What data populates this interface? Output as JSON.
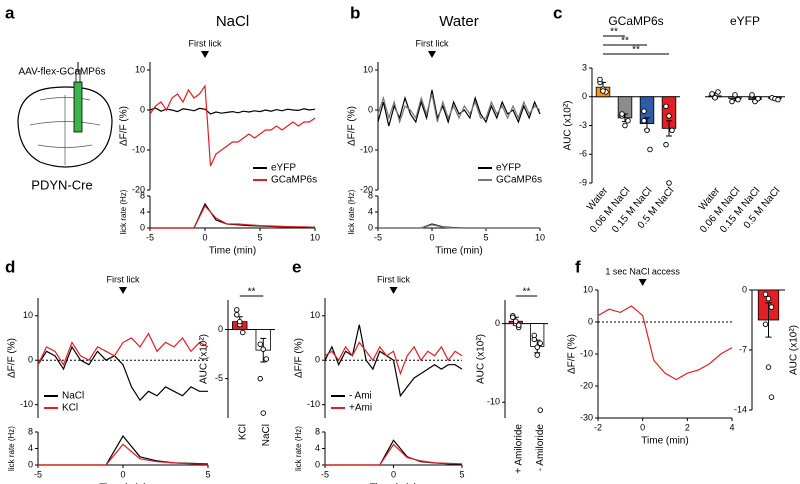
{
  "chart_data": [
    {
      "type": "line",
      "panel": "a",
      "title": "NaCl",
      "construct": "AAV-flex-GCaMP6s",
      "mouse_line": "PDYN-Cre",
      "ylabel": "ΔF/F (%)",
      "annotation": {
        "text": "First lick",
        "x": 0
      },
      "xlim": [
        -5,
        10
      ],
      "ylim": [
        -20,
        12
      ],
      "yticks": [
        -20,
        -10,
        0,
        10
      ],
      "legend": "lower right",
      "x": [
        -5,
        -4.5,
        -4,
        -3.5,
        -3,
        -2.5,
        -2,
        -1.5,
        -1,
        -0.5,
        0,
        0.5,
        1,
        1.5,
        2,
        2.5,
        3,
        3.5,
        4,
        4.5,
        5,
        5.5,
        6,
        6.5,
        7,
        7.5,
        8,
        8.5,
        9,
        9.5,
        10
      ],
      "series": [
        {
          "name": "eYFP",
          "color": "#000000",
          "values": [
            0,
            0.5,
            -0.3,
            0.2,
            0,
            -0.4,
            0.3,
            0.1,
            -0.2,
            0.4,
            0.2,
            -1,
            -0.5,
            -0.8,
            -0.6,
            -0.4,
            -0.7,
            -0.3,
            -0.5,
            -0.2,
            -0.4,
            0,
            -0.3,
            0.1,
            -0.2,
            0.2,
            0,
            -0.1,
            0.3,
            0,
            0.2
          ]
        },
        {
          "name": "GCaMP6s",
          "color": "#e31e24",
          "values": [
            -1,
            1,
            2,
            0,
            3,
            4,
            2,
            5,
            3,
            4,
            6,
            -14,
            -11,
            -10,
            -9,
            -8,
            -8,
            -7,
            -6,
            -7,
            -6,
            -5,
            -5,
            -4,
            -5,
            -4,
            -3,
            -4,
            -3,
            -3,
            -2
          ]
        }
      ]
    },
    {
      "type": "line",
      "ylabel": "lick rate (Hz)",
      "xlabel": "Time (min)",
      "xlim": [
        -5,
        10
      ],
      "xticks": [
        -5,
        0,
        5,
        10
      ],
      "ylim": [
        0,
        8
      ],
      "yticks": [
        0,
        4,
        8
      ],
      "x": [
        -5,
        -4,
        -3,
        -2,
        -1,
        0,
        1,
        2,
        3,
        4,
        5,
        6,
        7,
        8,
        9,
        10
      ],
      "series": [
        {
          "color": "#000000",
          "values": [
            0,
            0,
            0,
            0,
            0,
            6,
            2,
            1,
            0.8,
            0.6,
            0.5,
            0.4,
            0.3,
            0.3,
            0.2,
            0.2
          ]
        },
        {
          "color": "#e31e24",
          "values": [
            0,
            0,
            0,
            0,
            0,
            5.5,
            2.5,
            1,
            1,
            0.8,
            0.6,
            0.5,
            0.4,
            0.3,
            0.3,
            0.2
          ]
        }
      ]
    },
    {
      "type": "line",
      "panel": "b",
      "title": "Water",
      "ylabel": "ΔF/F (%)",
      "annotation": {
        "text": "First lick",
        "x": 0
      },
      "xlim": [
        -5,
        10
      ],
      "ylim": [
        -20,
        12
      ],
      "yticks": [
        -20,
        -10,
        0,
        10
      ],
      "legend": "lower right",
      "x": [
        -5,
        -4.5,
        -4,
        -3.5,
        -3,
        -2.5,
        -2,
        -1.5,
        -1,
        -0.5,
        0,
        0.5,
        1,
        1.5,
        2,
        2.5,
        3,
        3.5,
        4,
        4.5,
        5,
        5.5,
        6,
        6.5,
        7,
        7.5,
        8,
        8.5,
        9,
        9.5,
        10
      ],
      "series": [
        {
          "name": "eYFP",
          "color": "#000000",
          "values": [
            -3,
            2,
            -4,
            1,
            -2,
            3,
            -1,
            -3,
            2,
            -2,
            5,
            -2,
            1,
            -3,
            2,
            -1,
            0,
            -2,
            3,
            -1,
            -3,
            1,
            -2,
            2,
            -1,
            0,
            -3,
            1,
            -2,
            2,
            -1
          ]
        },
        {
          "name": "GCaMP6s",
          "color": "#777777",
          "values": [
            -1,
            3,
            -2,
            2,
            -3,
            1,
            0,
            -2,
            3,
            -1,
            4,
            -3,
            2,
            -2,
            1,
            -2,
            1,
            -1,
            2,
            -2,
            -2,
            2,
            -1,
            1,
            -2,
            1,
            -2,
            2,
            -1,
            1,
            0
          ]
        }
      ]
    },
    {
      "type": "line",
      "ylabel": "lick rate (Hz)",
      "xlabel": "Time (min)",
      "xlim": [
        -5,
        10
      ],
      "xticks": [
        -5,
        0,
        5,
        10
      ],
      "ylim": [
        0,
        8
      ],
      "yticks": [
        0,
        4,
        8
      ],
      "x": [
        -5,
        -4,
        -3,
        -2,
        -1,
        0,
        1,
        2,
        3,
        4,
        5,
        6,
        7,
        8,
        9,
        10
      ],
      "series": [
        {
          "color": "#000000",
          "values": [
            0,
            0,
            0,
            0,
            0,
            1,
            0.3,
            0.1,
            0,
            0,
            0,
            0,
            0,
            0,
            0,
            0
          ]
        },
        {
          "color": "#777777",
          "values": [
            0,
            0,
            0,
            0,
            0,
            0.8,
            0.2,
            0,
            0,
            0,
            0,
            0,
            0,
            0,
            0,
            0
          ]
        }
      ]
    },
    {
      "type": "bar",
      "panel": "c",
      "title": "GCaMP6s",
      "ylabel": "AUC (x10²)",
      "ylim": [
        -9,
        3
      ],
      "yticks": [
        3,
        0,
        -3,
        -6,
        -9
      ],
      "categories": [
        "Water",
        "0.06 M NaCl",
        "0.15 M NaCl",
        "0.5 M NaCl"
      ],
      "values": [
        1,
        -2.2,
        -2.8,
        -3.3
      ],
      "errors": [
        0.5,
        0.4,
        0.6,
        0.8
      ],
      "colors": [
        "#f7941d",
        "#8c8c8c",
        "#2e5ca8",
        "#e31e24"
      ],
      "points": [
        [
          1.5,
          0.8,
          0.5,
          1.8,
          0.6
        ],
        [
          -2,
          -3,
          -2.5,
          -1.8
        ],
        [
          -1.5,
          -3.5,
          -5.5,
          -2.5
        ],
        [
          -1,
          -2,
          -3.5,
          -5,
          -9
        ]
      ],
      "significance": [
        "**",
        "**",
        "**"
      ]
    },
    {
      "type": "bar",
      "title": "eYFP",
      "ylim": [
        -9,
        3
      ],
      "categories": [
        "Water",
        "0.06 M NaCl",
        "0.15 M NaCl",
        "0.5 M NaCl"
      ],
      "values": [
        0.1,
        -0.2,
        -0.3,
        -0.2
      ],
      "errors": [
        0.3,
        0.2,
        0.2,
        0.1
      ],
      "colors": [
        "#f7941d",
        "#8c8c8c",
        "#2e5ca8",
        "#e31e24"
      ],
      "points": [
        [
          0.3,
          -0.1,
          0.5
        ],
        [
          -0.5,
          0.2,
          -0.3
        ],
        [
          0.2,
          -0.5,
          -0.2
        ],
        [
          -0.1,
          -0.2,
          -0.3
        ]
      ]
    },
    {
      "type": "line",
      "panel": "d",
      "ylabel": "ΔF/F (%)",
      "annotation": {
        "text": "First lick",
        "x": 0
      },
      "hline": 0,
      "legend": "lower left",
      "xlim": [
        -5,
        5
      ],
      "ylim": [
        -13,
        14
      ],
      "yticks": [
        -10,
        0,
        10
      ],
      "x": [
        -5,
        -4.5,
        -4,
        -3.5,
        -3,
        -2.5,
        -2,
        -1.5,
        -1,
        -0.5,
        0,
        0.5,
        1,
        1.5,
        2,
        2.5,
        3,
        3.5,
        4,
        4.5,
        5
      ],
      "series": [
        {
          "name": "NaCl",
          "color": "#000000",
          "values": [
            -1,
            2,
            1,
            -2,
            3,
            0,
            -1,
            2,
            0,
            1,
            -1,
            -6,
            -9,
            -7,
            -8,
            -6,
            -7,
            -8,
            -6,
            -7,
            -7
          ]
        },
        {
          "name": "KCl",
          "color": "#e31e24",
          "values": [
            -1,
            3,
            2,
            -1,
            4,
            1,
            0,
            3,
            2,
            1,
            4,
            5,
            3,
            6,
            2,
            4,
            3,
            5,
            2,
            4,
            3
          ]
        }
      ]
    },
    {
      "type": "line",
      "ylabel": "lick rate (Hz)",
      "xlabel": "Time (min)",
      "xlim": [
        -5,
        5
      ],
      "xticks": [
        -5,
        0,
        5
      ],
      "ylim": [
        0,
        8
      ],
      "yticks": [
        0,
        4,
        8
      ],
      "x": [
        -5,
        -4,
        -3,
        -2,
        -1,
        0,
        1,
        2,
        3,
        4,
        5
      ],
      "series": [
        {
          "color": "#000000",
          "values": [
            0,
            0,
            0,
            0,
            0,
            7,
            2,
            1,
            0.5,
            0.4,
            0.3
          ]
        },
        {
          "color": "#e31e24",
          "values": [
            0,
            0,
            0,
            0,
            0,
            5,
            1.5,
            0.8,
            0.5,
            0.3,
            0.2
          ]
        }
      ]
    },
    {
      "type": "bar",
      "ylabel": "AUC (x10²)",
      "ylim": [
        -9,
        3
      ],
      "yticks": [
        0,
        -5
      ],
      "categories": [
        "KCl",
        "NaCl"
      ],
      "values": [
        0.8,
        -2.1
      ],
      "errors": [
        0.5,
        1.2
      ],
      "colors": [
        "#e31e24",
        "#ffffff"
      ],
      "points": [
        [
          1.5,
          0.5,
          -0.3,
          2,
          0.8
        ],
        [
          -1.5,
          -2,
          -3,
          -5,
          -8.5
        ]
      ],
      "significance": [
        "**"
      ]
    },
    {
      "type": "line",
      "panel": "e",
      "ylabel": "ΔF/F (%)",
      "annotation": {
        "text": "First lick",
        "x": 0
      },
      "hline": 0,
      "legend": "lower left",
      "xlim": [
        -5,
        5
      ],
      "ylim": [
        -13,
        14
      ],
      "yticks": [
        -10,
        0,
        10
      ],
      "x": [
        -5,
        -4.5,
        -4,
        -3.5,
        -3,
        -2.5,
        -2,
        -1.5,
        -1,
        -0.5,
        0,
        0.5,
        1,
        1.5,
        2,
        2.5,
        3,
        3.5,
        4,
        4.5,
        5
      ],
      "series": [
        {
          "name": "- Ami",
          "color": "#000000",
          "values": [
            0,
            3,
            -1,
            2,
            1,
            8,
            0,
            -2,
            2,
            1,
            0,
            -8,
            -6,
            -4,
            -3,
            -2,
            -1,
            -2,
            -1,
            -1,
            -2
          ]
        },
        {
          "name": "+Ami",
          "color": "#e31e24",
          "values": [
            1,
            2,
            0,
            3,
            1,
            4,
            2,
            0,
            3,
            1,
            2,
            -3,
            1,
            3,
            0,
            2,
            1,
            3,
            0,
            2,
            1
          ]
        }
      ]
    },
    {
      "type": "line",
      "ylabel": "lick rate (Hz)",
      "xlabel": "Time (min)",
      "xlim": [
        -5,
        5
      ],
      "xticks": [
        -5,
        0,
        5
      ],
      "ylim": [
        0,
        8
      ],
      "yticks": [
        0,
        4,
        8
      ],
      "x": [
        -5,
        -4,
        -3,
        -2,
        -1,
        0,
        1,
        2,
        3,
        4,
        5
      ],
      "series": [
        {
          "color": "#000000",
          "values": [
            0,
            0,
            0,
            0,
            0,
            6,
            2,
            0.8,
            0.5,
            0.3,
            0.2
          ]
        },
        {
          "color": "#e31e24",
          "values": [
            0,
            0,
            0,
            0,
            0,
            5,
            1.8,
            1,
            0.5,
            0.4,
            0.3
          ]
        }
      ]
    },
    {
      "type": "bar",
      "ylabel": "AUC (x10²)",
      "ylim": [
        -12,
        3
      ],
      "yticks": [
        0,
        -10
      ],
      "categories": [
        "+ Amiloride",
        "- Amiloride"
      ],
      "values": [
        0.3,
        -2.9
      ],
      "errors": [
        0.5,
        0.8
      ],
      "colors": [
        "#e31e24",
        "#ffffff"
      ],
      "points": [
        [
          1,
          0,
          -0.5,
          0.8,
          0.3,
          -0.2
        ],
        [
          -2,
          -3,
          -2.5,
          -1.5,
          -4,
          -11
        ]
      ],
      "significance": [
        "**"
      ]
    },
    {
      "type": "line",
      "panel": "f",
      "ylabel": "ΔF/F (%)",
      "xlabel": "Time (min)",
      "annotation": {
        "text": "1 sec NaCl access",
        "x": 0
      },
      "hline": 0,
      "xlim": [
        -2,
        4
      ],
      "xticks": [
        -2,
        0,
        2,
        4
      ],
      "ylim": [
        -30,
        10
      ],
      "yticks": [
        10,
        0,
        -10,
        -20,
        -30
      ],
      "x": [
        -2,
        -1.5,
        -1,
        -0.5,
        0,
        0.5,
        1,
        1.5,
        2,
        2.5,
        3,
        3.5,
        4
      ],
      "series": [
        {
          "color": "#e31e24",
          "values": [
            2,
            4,
            3,
            5,
            2,
            -12,
            -16,
            -18,
            -16,
            -15,
            -13,
            -10,
            -8
          ]
        }
      ]
    },
    {
      "type": "bar",
      "ylabel": "AUC (x10²)",
      "ylim": [
        -14,
        0
      ],
      "yticks": [
        0,
        -7,
        -14
      ],
      "categories": [
        null
      ],
      "values": [
        -3.5
      ],
      "errors": [
        2
      ],
      "colors": [
        "#e31e24"
      ],
      "points": [
        [
          -0.5,
          -1,
          -2,
          -4,
          -9,
          -12.5
        ]
      ]
    }
  ]
}
